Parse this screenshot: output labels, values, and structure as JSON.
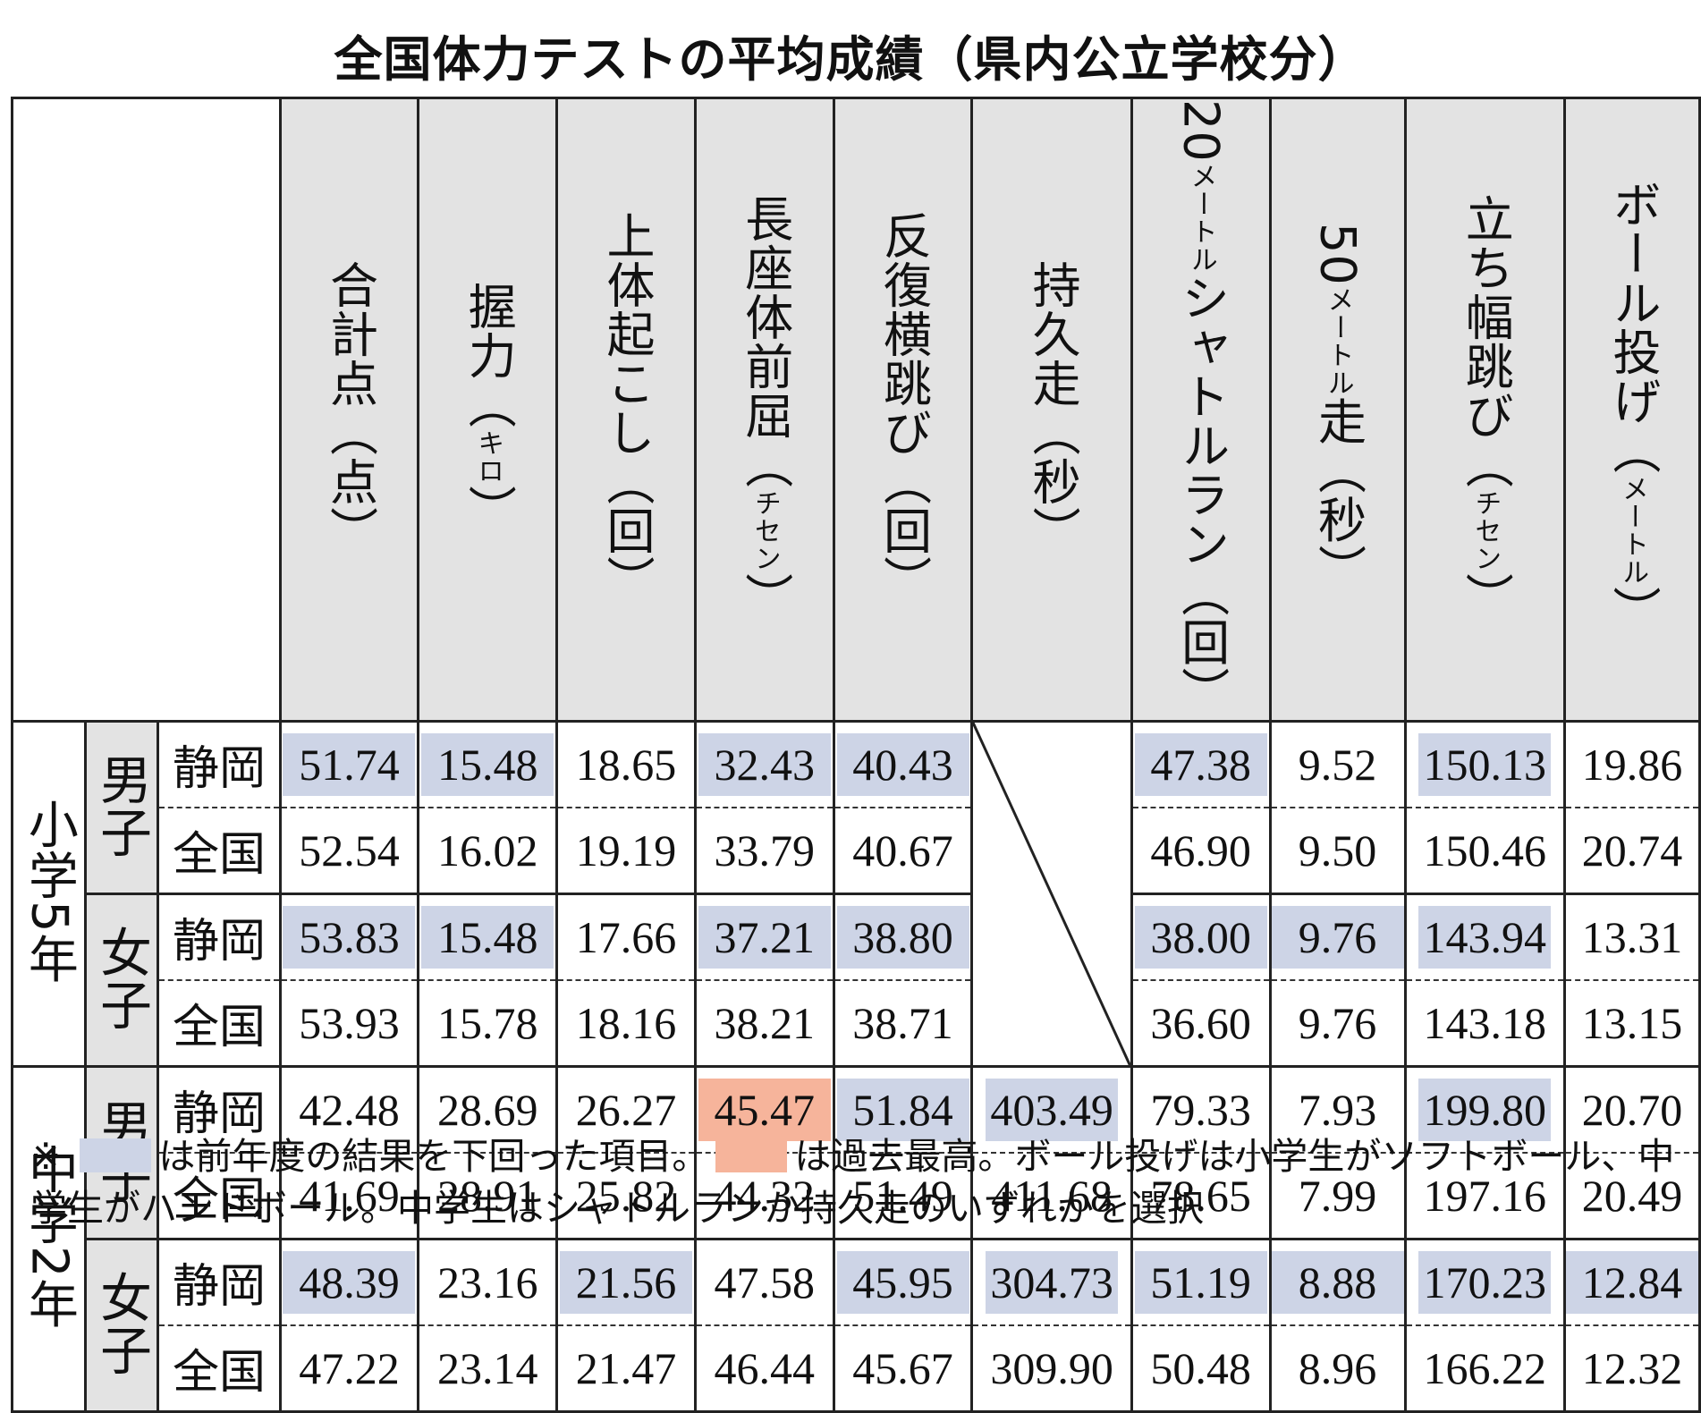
{
  "title": "全国体力テストの平均成績（県内公立学校分）",
  "columns": [
    {
      "name": "合計点",
      "unit": "（点）"
    },
    {
      "name": "握力",
      "unit": "（キロ）"
    },
    {
      "name": "上体起こし",
      "unit": "（回）"
    },
    {
      "name": "長座体前屈",
      "unit": "（チセン）"
    },
    {
      "name": "反復横跳び",
      "unit": "（回）"
    },
    {
      "name": "持久走",
      "unit": "（秒）"
    },
    {
      "name": "20メートルシャトルラン",
      "unit": "（回）"
    },
    {
      "name": "50メートル走",
      "unit": "（秒）"
    },
    {
      "name": "立ち幅跳び",
      "unit": "（チセン）"
    },
    {
      "name": "ボール投げ",
      "unit": "（メートル）"
    }
  ],
  "header_text": {
    "c0": "合計点（点）",
    "c1a": "握力（",
    "c1b": "キロ",
    "c1c": "）",
    "c2a": "上体起こし",
    "c2b": "（回）",
    "c3a": "長座体前屈",
    "c3b": "チセン",
    "c4": "反復横跳び（回）",
    "c5": "持久走（秒）",
    "c6a": "20",
    "c6b": "メートル",
    "c6c": "シャトルラン（回）",
    "c7a": "50",
    "c7b": "メートル",
    "c7c": "走（秒）",
    "c8a": "立ち幅跳び",
    "c8b": "チセン",
    "c9a": "ボール投げ",
    "c9b": "メートル"
  },
  "groups": [
    {
      "label": "小学5年",
      "sexes": [
        "男子",
        "女子"
      ]
    },
    {
      "label": "中学2年",
      "sexes": [
        "男子",
        "女子"
      ]
    }
  ],
  "place_labels": {
    "shizuoka": "静岡",
    "national": "全国"
  },
  "rows": [
    {
      "values": [
        "51.74",
        "15.48",
        "18.65",
        "32.43",
        "40.43",
        "",
        "47.38",
        "9.52",
        "150.13",
        "19.86"
      ]
    },
    {
      "values": [
        "52.54",
        "16.02",
        "19.19",
        "33.79",
        "40.67",
        "",
        "46.90",
        "9.50",
        "150.46",
        "20.74"
      ]
    },
    {
      "values": [
        "53.83",
        "15.48",
        "17.66",
        "37.21",
        "38.80",
        "",
        "38.00",
        "9.76",
        "143.94",
        "13.31"
      ]
    },
    {
      "values": [
        "53.93",
        "15.78",
        "18.16",
        "38.21",
        "38.71",
        "",
        "36.60",
        "9.76",
        "143.18",
        "13.15"
      ]
    },
    {
      "values": [
        "42.48",
        "28.69",
        "26.27",
        "45.47",
        "51.84",
        "403.49",
        "79.33",
        "7.93",
        "199.80",
        "20.70"
      ]
    },
    {
      "values": [
        "41.69",
        "28.91",
        "25.82",
        "44.32",
        "51.49",
        "411.68",
        "78.65",
        "7.99",
        "197.16",
        "20.49"
      ]
    },
    {
      "values": [
        "48.39",
        "23.16",
        "21.56",
        "47.58",
        "45.95",
        "304.73",
        "51.19",
        "8.88",
        "170.23",
        "12.84"
      ]
    },
    {
      "values": [
        "47.22",
        "23.14",
        "21.47",
        "46.44",
        "45.67",
        "309.90",
        "50.48",
        "8.96",
        "166.22",
        "12.32"
      ]
    }
  ],
  "highlight_colors": {
    "below_last_year": "#cdd4e6",
    "record_high": "#f6b49b"
  },
  "note": {
    "prefix": "※",
    "text1": "は前年度の結果を下回った項目。",
    "text2": "は過去最高。ボール投げは小学生がソフトボール、中学生がハンドボール。中学生はシャトルランか持久走のいずれかを選択"
  }
}
